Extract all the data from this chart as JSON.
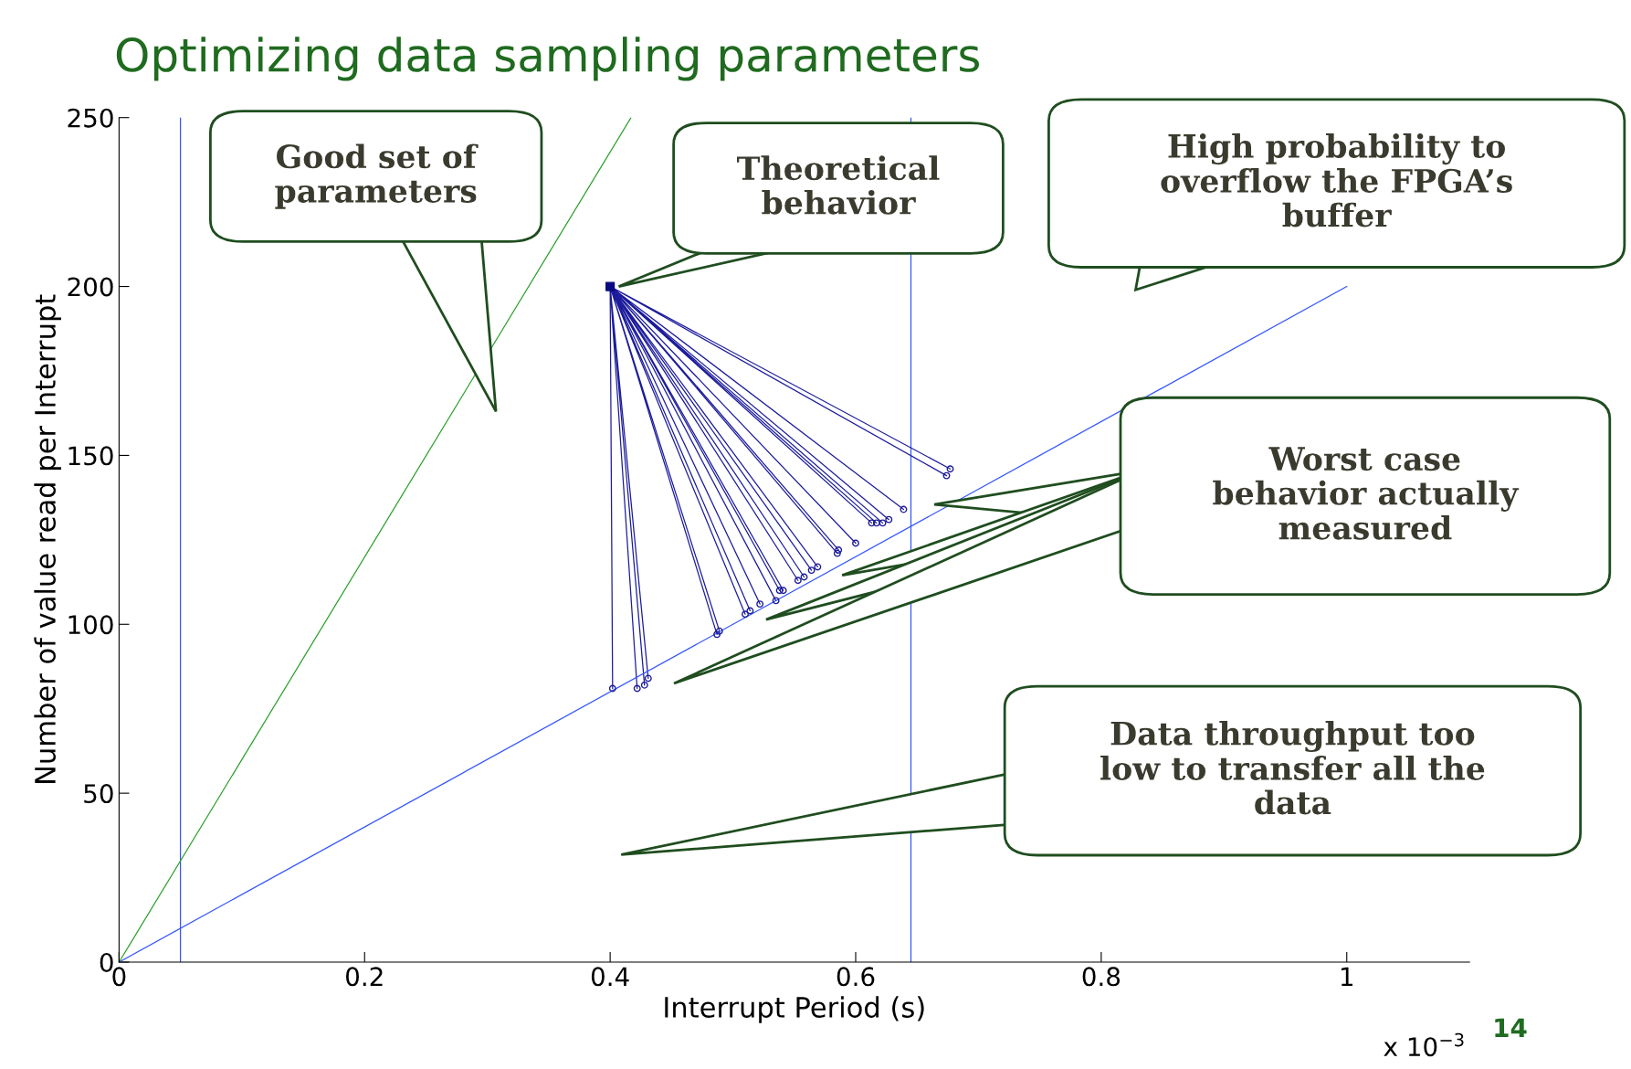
{
  "chart_data": {
    "type": "line",
    "title": "Optimizing data sampling parameters",
    "xlabel": "Interrupt Period (s)",
    "ylabel": "Number of value read per Interrupt",
    "xlim": [
      0,
      1.1
    ],
    "ylim": [
      0,
      250
    ],
    "xticks": [
      0,
      0.2,
      0.4,
      0.6,
      0.8,
      1
    ],
    "yticks": [
      0,
      50,
      100,
      150,
      200,
      250
    ],
    "grid": false,
    "legend": false,
    "series": [
      {
        "color": "#1c1c9c",
        "marker": "none",
        "x": [
          0.4,
          0.402,
          0.4,
          0.422,
          0.4,
          0.428,
          0.4,
          0.431,
          0.4,
          0.487,
          0.4,
          0.489,
          0.4,
          0.51,
          0.4,
          0.514,
          0.4,
          0.522,
          0.4,
          0.535,
          0.4,
          0.538,
          0.4,
          0.541,
          0.4,
          0.553,
          0.4,
          0.558,
          0.4,
          0.564,
          0.4,
          0.569,
          0.4,
          0.585,
          0.4,
          0.586,
          0.4,
          0.6,
          0.4,
          0.613,
          0.4,
          0.617,
          0.4,
          0.622,
          0.4,
          0.627,
          0.4,
          0.639,
          0.4,
          0.674,
          0.4,
          0.677
        ],
        "values": [
          200,
          81,
          200,
          81,
          200,
          82,
          200,
          84,
          200,
          97,
          200,
          98,
          200,
          103,
          200,
          104,
          200,
          106,
          200,
          107,
          200,
          110,
          200,
          110,
          200,
          113,
          200,
          114,
          200,
          116,
          200,
          117,
          200,
          121,
          200,
          122,
          200,
          124,
          200,
          130,
          200,
          130,
          200,
          130,
          200,
          131,
          200,
          134,
          200,
          144,
          200,
          146
        ]
      },
      {
        "type": "scatter",
        "color": "#1c1c9c",
        "marker": "circle",
        "x": [
          0.402,
          0.422,
          0.428,
          0.431,
          0.487,
          0.489,
          0.51,
          0.514,
          0.522,
          0.535,
          0.538,
          0.541,
          0.553,
          0.558,
          0.564,
          0.569,
          0.585,
          0.586,
          0.6,
          0.613,
          0.617,
          0.622,
          0.627,
          0.639,
          0.674,
          0.677
        ],
        "values": [
          81,
          81,
          82,
          84,
          97,
          98,
          103,
          104,
          106,
          107,
          110,
          110,
          113,
          114,
          116,
          117,
          121,
          122,
          124,
          130,
          130,
          130,
          131,
          134,
          144,
          146
        ]
      },
      {
        "type": "scatter",
        "color": "#0a0a80",
        "marker": "square",
        "x": [
          0.4
        ],
        "values": [
          200
        ]
      },
      {
        "color": "#3355ff",
        "marker": "none",
        "x": [
          0,
          1.0
        ],
        "values": [
          0,
          200
        ]
      },
      {
        "color": "#2ca02c",
        "marker": "none",
        "x": [
          0,
          0.417
        ],
        "values": [
          0,
          250
        ]
      }
    ],
    "ref_lines": [
      {
        "axis": "x",
        "value": 0.05,
        "color": "#3355ff"
      },
      {
        "axis": "x",
        "value": 0.645,
        "color": "#3355ff"
      }
    ],
    "annotations": [
      "Good set of\nparameters",
      "Theoretical\nbehavior",
      "High probability to\noverflow the FPGA’s\nbuffer",
      "Worst case\nbehavior actually\nmeasured",
      "Data throughput too\nlow to transfer all the\ndata",
      "x 10$^{−3}$",
      "14"
    ]
  }
}
